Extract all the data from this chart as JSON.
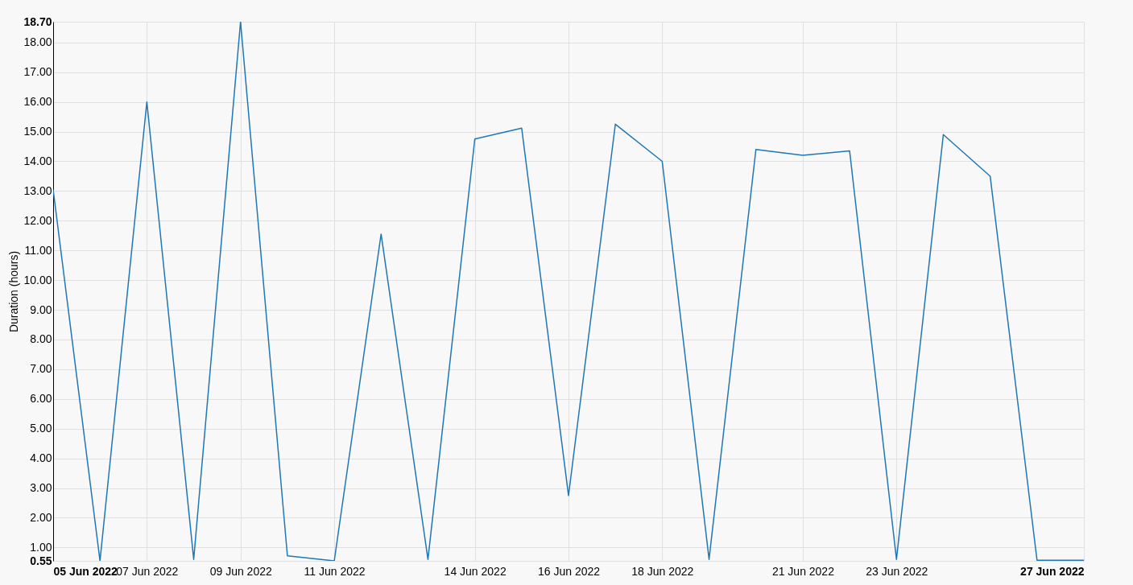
{
  "chart_data": {
    "type": "line",
    "ylabel": "Duration (hours)",
    "x": [
      "2022-06-05",
      "2022-06-06",
      "2022-06-07",
      "2022-06-08",
      "2022-06-09",
      "2022-06-10",
      "2022-06-11",
      "2022-06-12",
      "2022-06-13",
      "2022-06-14",
      "2022-06-15",
      "2022-06-16",
      "2022-06-17",
      "2022-06-18",
      "2022-06-19",
      "2022-06-20",
      "2022-06-21",
      "2022-06-22",
      "2022-06-23",
      "2022-06-24",
      "2022-06-25",
      "2022-06-26",
      "2022-06-27"
    ],
    "series": [
      {
        "color": "#1f77b4",
        "values": [
          13.05,
          0.55,
          16.0,
          0.6,
          18.7,
          0.72,
          0.55,
          11.55,
          0.6,
          14.75,
          15.12,
          2.75,
          15.25,
          14.0,
          0.6,
          14.4,
          14.2,
          14.35,
          0.6,
          14.9,
          13.5,
          0.57,
          0.57
        ]
      }
    ],
    "xlim": [
      "2022-06-05",
      "2022-06-27"
    ],
    "xticks": [
      {
        "value": "2022-06-05",
        "label": "05 Jun 2022"
      },
      {
        "value": "2022-06-07",
        "label": "07 Jun 2022"
      },
      {
        "value": "2022-06-09",
        "label": "09 Jun 2022"
      },
      {
        "value": "2022-06-11",
        "label": "11 Jun 2022"
      },
      {
        "value": "2022-06-14",
        "label": "14 Jun 2022"
      },
      {
        "value": "2022-06-16",
        "label": "16 Jun 2022"
      },
      {
        "value": "2022-06-18",
        "label": "18 Jun 2022"
      },
      {
        "value": "2022-06-21",
        "label": "21 Jun 2022"
      },
      {
        "value": "2022-06-23",
        "label": "23 Jun 2022"
      },
      {
        "value": "2022-06-27",
        "label": "27 Jun 2022"
      }
    ],
    "ylim": [
      0.55,
      18.7
    ],
    "yticks": [
      {
        "value": 0.55,
        "label": "0.55"
      },
      {
        "value": 1,
        "label": "1.00"
      },
      {
        "value": 2,
        "label": "2.00"
      },
      {
        "value": 3,
        "label": "3.00"
      },
      {
        "value": 4,
        "label": "4.00"
      },
      {
        "value": 5,
        "label": "5.00"
      },
      {
        "value": 6,
        "label": "6.00"
      },
      {
        "value": 7,
        "label": "7.00"
      },
      {
        "value": 8,
        "label": "8.00"
      },
      {
        "value": 9,
        "label": "9.00"
      },
      {
        "value": 10,
        "label": "10.00"
      },
      {
        "value": 11,
        "label": "11.00"
      },
      {
        "value": 12,
        "label": "12.00"
      },
      {
        "value": 13,
        "label": "13.00"
      },
      {
        "value": 14,
        "label": "14.00"
      },
      {
        "value": 15,
        "label": "15.00"
      },
      {
        "value": 16,
        "label": "16.00"
      },
      {
        "value": 17,
        "label": "17.00"
      },
      {
        "value": 18,
        "label": "18.00"
      },
      {
        "value": 18.7,
        "label": "18.70"
      }
    ],
    "grid": true,
    "marker": "none",
    "line_style": "solid"
  }
}
